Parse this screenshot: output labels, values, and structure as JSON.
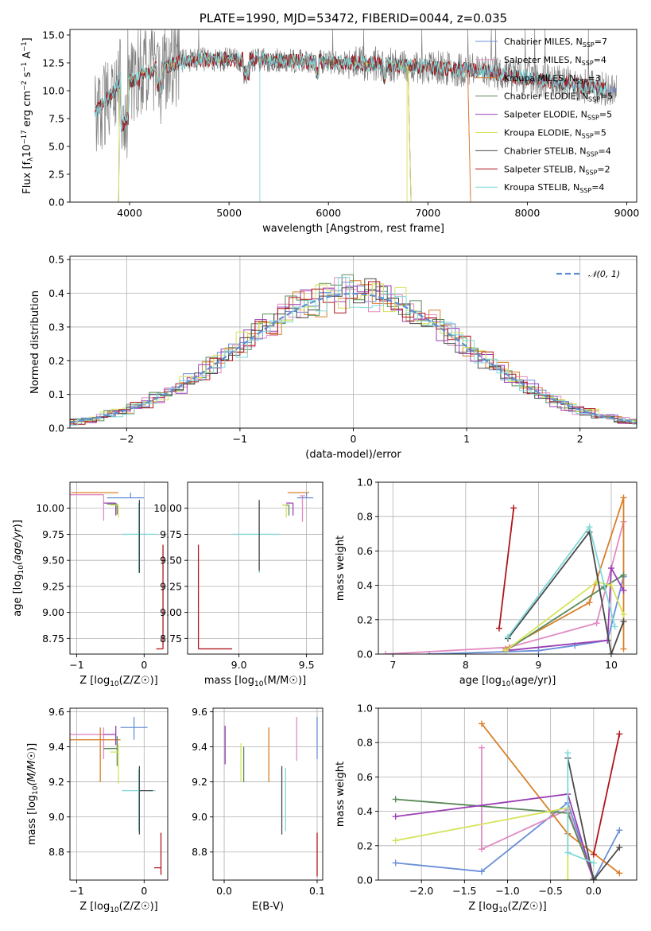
{
  "chart_data": [
    {
      "id": "spectrum",
      "type": "line",
      "title": "PLATE=1990, MJD=53472, FIBERID=0044, z=0.035",
      "xlabel": "wavelength [Angstrom, rest frame]",
      "ylabel": "Flux [f_λ10^-17 erg cm^-2 s^-1 A^-1]",
      "xlim": [
        3400,
        9100
      ],
      "ylim": [
        0,
        15.5
      ],
      "xticks": [
        4000,
        5000,
        6000,
        7000,
        8000,
        9000
      ],
      "yticks": [
        0.0,
        2.5,
        5.0,
        7.5,
        10.0,
        12.5,
        15.0
      ],
      "grid": false,
      "legend_position": "top-right",
      "data_series": {
        "name": "",
        "color": "#808080",
        "x_range": [
          3650,
          8900
        ]
      },
      "series": [
        {
          "name": "Chabrier MILES, N_SSP=7",
          "label": "Chabrier MILES, N",
          "sub": "SSP",
          "suffix": "=7",
          "color": "#6a8fd8",
          "x_range": [
            3650,
            8900
          ]
        },
        {
          "name": "Salpeter MILES, N_SSP=4",
          "label": "Salpeter MILES, N",
          "sub": "SSP",
          "suffix": "=4",
          "color": "#e28bc3",
          "x_range": [
            3650,
            7400
          ]
        },
        {
          "name": "Kroupa MILES, N_SSP=3",
          "label": "Kroupa MILES, N",
          "sub": "SSP",
          "suffix": "=3",
          "color": "#d97f2a",
          "x_range": [
            3650,
            7400
          ]
        },
        {
          "name": "Chabrier ELODIE, N_SSP=5",
          "label": "Chabrier ELODIE, N",
          "sub": "SSP",
          "suffix": "=5",
          "color": "#5a8a5a",
          "x_range": [
            3900,
            6800
          ]
        },
        {
          "name": "Salpeter ELODIE, N_SSP=5",
          "label": "Salpeter ELODIE, N",
          "sub": "SSP",
          "suffix": "=5",
          "color": "#9b3fb5",
          "x_range": [
            3900,
            6800
          ]
        },
        {
          "name": "Kroupa ELODIE, N_SSP=5",
          "label": "Kroupa ELODIE, N",
          "sub": "SSP",
          "suffix": "=5",
          "color": "#d6e35a",
          "x_range": [
            3900,
            6800
          ]
        },
        {
          "name": "Chabrier STELIB, N_SSP=4",
          "label": "Chabrier STELIB, N",
          "sub": "SSP",
          "suffix": "=4",
          "color": "#4a4a4a",
          "x_range": [
            3650,
            8800
          ]
        },
        {
          "name": "Salpeter STELIB, N_SSP=2",
          "label": "Salpeter STELIB, N",
          "sub": "SSP",
          "suffix": "=2",
          "color": "#b0161b",
          "x_range": [
            3650,
            8800
          ]
        },
        {
          "name": "Kroupa STELIB, N_SSP=4",
          "label": "Kroupa STELIB, N",
          "sub": "SSP",
          "suffix": "=4",
          "color": "#7fd8d8",
          "x_range": [
            3650,
            8800
          ]
        }
      ]
    },
    {
      "id": "residuals",
      "type": "line",
      "xlabel": "(data-model)/error",
      "ylabel": "Normed distribution",
      "xlim": [
        -2.5,
        2.5
      ],
      "ylim": [
        0,
        0.51
      ],
      "xticks": [
        -2,
        -1,
        0,
        1,
        2
      ],
      "yticks": [
        0.0,
        0.1,
        0.2,
        0.3,
        0.4,
        0.5
      ],
      "grid": true,
      "legend_position": "top-right",
      "reference_curve": {
        "name": "N(0,1)",
        "label": "𝒩(0, 1)",
        "color": "#5b8fd1",
        "mean": 0,
        "sigma": 1
      },
      "histogram_bin_width": 0.1
    },
    {
      "id": "age_vs_Z",
      "type": "scatter",
      "xlabel_text": "Z [log",
      "xlabel_sub": "10",
      "xlabel_rest": "(Z/Z☉)]",
      "ylabel": "age [log10(age/yr)]",
      "xlim": [
        -1.1,
        0.35
      ],
      "ylim": [
        8.6,
        10.25
      ],
      "xticks": [
        -1,
        0
      ],
      "yticks": [
        8.75,
        9.0,
        9.25,
        9.5,
        9.75,
        10.0
      ],
      "grid": true,
      "points": [
        {
          "x": -0.68,
          "xerr": [
            0.4,
            0.3
          ],
          "y": 10.15,
          "yerr": [
            0.0,
            0.0
          ],
          "color": "#d97f2a"
        },
        {
          "x": -0.6,
          "xerr": [
            0.55,
            0.0
          ],
          "y": 10.13,
          "yerr": [
            0.25,
            0.0
          ],
          "color": "#e28bc3"
        },
        {
          "x": -0.2,
          "xerr": [
            0.35,
            0.2
          ],
          "y": 10.1,
          "yerr": [
            0.0,
            0.05
          ],
          "color": "#6a8fd8"
        },
        {
          "x": -0.42,
          "xerr": [
            0.18,
            0.0
          ],
          "y": 10.05,
          "yerr": [
            0.12,
            0.0
          ],
          "color": "#9b3fb5"
        },
        {
          "x": -0.4,
          "xerr": [
            0.15,
            0.0
          ],
          "y": 10.04,
          "yerr": [
            0.1,
            0.0
          ],
          "color": "#5a8a5a"
        },
        {
          "x": -0.38,
          "xerr": [
            0.12,
            0.0
          ],
          "y": 10.03,
          "yerr": [
            0.12,
            0.0
          ],
          "color": "#d6e35a"
        },
        {
          "x": -0.08,
          "xerr": [
            0.25,
            0.25
          ],
          "y": 9.75,
          "yerr": [
            0.37,
            0.3
          ],
          "color": "#7fd8d8"
        },
        {
          "x": -0.07,
          "xerr": [
            0.0,
            0.0
          ],
          "y": 9.75,
          "yerr": [
            0.37,
            0.33
          ],
          "color": "#4a4a4a"
        },
        {
          "x": 0.28,
          "xerr": [
            0.1,
            0.0
          ],
          "y": 8.65,
          "yerr": [
            0.0,
            1.0
          ],
          "color": "#b0161b"
        }
      ]
    },
    {
      "id": "age_vs_mass",
      "type": "scatter",
      "xlabel_text": "mass [log",
      "xlabel_sub": "10",
      "xlabel_rest": "(M/M☉)]",
      "xlim": [
        8.62,
        9.62
      ],
      "ylim": [
        8.6,
        10.25
      ],
      "xticks": [
        9.0,
        9.5
      ],
      "yticks": [
        8.75,
        9.0,
        9.25,
        9.5,
        9.75,
        10.0
      ],
      "grid": true,
      "points": [
        {
          "x": 9.44,
          "xerr": [
            0.08,
            0.08
          ],
          "y": 10.15,
          "yerr": [
            0.0,
            0.0
          ],
          "color": "#d97f2a"
        },
        {
          "x": 9.47,
          "xerr": [
            0.02,
            0.02
          ],
          "y": 10.12,
          "yerr": [
            0.25,
            0.0
          ],
          "color": "#e28bc3"
        },
        {
          "x": 9.5,
          "xerr": [
            0.07,
            0.05
          ],
          "y": 10.1,
          "yerr": [
            0.0,
            0.05
          ],
          "color": "#6a8fd8"
        },
        {
          "x": 9.4,
          "xerr": [
            0.05,
            0.0
          ],
          "y": 10.05,
          "yerr": [
            0.12,
            0.0
          ],
          "color": "#9b3fb5"
        },
        {
          "x": 9.37,
          "xerr": [
            0.05,
            0.0
          ],
          "y": 10.03,
          "yerr": [
            0.1,
            0.0
          ],
          "color": "#5a8a5a"
        },
        {
          "x": 9.35,
          "xerr": [
            0.03,
            0.0
          ],
          "y": 10.03,
          "yerr": [
            0.12,
            0.0
          ],
          "color": "#d6e35a"
        },
        {
          "x": 9.15,
          "xerr": [
            0.2,
            0.15
          ],
          "y": 9.75,
          "yerr": [
            0.37,
            0.3
          ],
          "color": "#7fd8d8"
        },
        {
          "x": 9.15,
          "xerr": [
            0.0,
            0.0
          ],
          "y": 9.75,
          "yerr": [
            0.35,
            0.33
          ],
          "color": "#4a4a4a"
        },
        {
          "x": 8.7,
          "xerr": [
            0.0,
            0.25
          ],
          "y": 8.65,
          "yerr": [
            0.0,
            1.0
          ],
          "color": "#b0161b"
        }
      ]
    },
    {
      "id": "weight_vs_age",
      "type": "line",
      "xlabel_text": "age  [log",
      "xlabel_sub": "10",
      "xlabel_rest": "(age/yr)]",
      "ylabel": "mass weight",
      "xlim": [
        6.8,
        10.35
      ],
      "ylim": [
        0,
        1.0
      ],
      "xticks": [
        7,
        8,
        9,
        10
      ],
      "yticks": [
        0.0,
        0.2,
        0.4,
        0.6,
        0.8,
        1.0
      ],
      "grid": true,
      "series": [
        {
          "color": "#6a8fd8",
          "x": [
            7.5,
            9.0,
            9.5,
            9.95,
            10.17
          ],
          "y": [
            0.0,
            0.02,
            0.05,
            0.08,
            0.45
          ]
        },
        {
          "color": "#e28bc3",
          "x": [
            6.9,
            8.6,
            9.8,
            10.17
          ],
          "y": [
            0.0,
            0.04,
            0.18,
            0.77
          ]
        },
        {
          "color": "#d97f2a",
          "x": [
            8.55,
            9.7,
            10.17,
            10.17
          ],
          "y": [
            0.03,
            0.3,
            0.91,
            0.03
          ]
        },
        {
          "color": "#5a8a5a",
          "x": [
            8.55,
            9.9,
            10.17
          ],
          "y": [
            0.02,
            0.39,
            0.46
          ]
        },
        {
          "color": "#9b3fb5",
          "x": [
            8.55,
            9.95,
            10.0,
            10.17
          ],
          "y": [
            0.02,
            0.08,
            0.5,
            0.37
          ]
        },
        {
          "color": "#d6e35a",
          "x": [
            8.55,
            9.8,
            10.0,
            10.17
          ],
          "y": [
            0.02,
            0.42,
            0.4,
            0.23
          ]
        },
        {
          "color": "#4a4a4a",
          "x": [
            8.58,
            9.7,
            10.0,
            10.17
          ],
          "y": [
            0.09,
            0.71,
            0.0,
            0.19
          ]
        },
        {
          "color": "#b0161b",
          "x": [
            8.46,
            8.66
          ],
          "y": [
            0.15,
            0.85
          ]
        },
        {
          "color": "#7fd8d8",
          "x": [
            8.58,
            9.7,
            10.05
          ],
          "y": [
            0.1,
            0.74,
            0.16
          ]
        }
      ]
    },
    {
      "id": "mass_vs_Z",
      "type": "scatter",
      "xlabel_text": "Z [log",
      "xlabel_sub": "10",
      "xlabel_rest": "(Z/Z☉)]",
      "ylabel": "mass [log10(M/M☉)]",
      "xlim": [
        -1.1,
        0.35
      ],
      "ylim": [
        8.64,
        9.62
      ],
      "xticks": [
        -1,
        0
      ],
      "yticks": [
        8.8,
        9.0,
        9.2,
        9.4,
        9.6
      ],
      "grid": true,
      "points": [
        {
          "x": -0.6,
          "xerr": [
            0.55,
            0.0
          ],
          "y": 9.47,
          "yerr": [
            0.14,
            0.04
          ],
          "color": "#e28bc3"
        },
        {
          "x": -0.65,
          "xerr": [
            0.45,
            0.3
          ],
          "y": 9.44,
          "yerr": [
            0.24,
            0.07
          ],
          "color": "#d97f2a"
        },
        {
          "x": -0.15,
          "xerr": [
            0.2,
            0.2
          ],
          "y": 9.51,
          "yerr": [
            0.07,
            0.06
          ],
          "color": "#6a8fd8"
        },
        {
          "x": -0.42,
          "xerr": [
            0.18,
            0.0
          ],
          "y": 9.47,
          "yerr": [
            0.06,
            0.05
          ],
          "color": "#9b3fb5"
        },
        {
          "x": -0.4,
          "xerr": [
            0.2,
            0.0
          ],
          "y": 9.39,
          "yerr": [
            0.1,
            0.07
          ],
          "color": "#5a8a5a"
        },
        {
          "x": -0.38,
          "xerr": [
            0.12,
            0.0
          ],
          "y": 9.37,
          "yerr": [
            0.18,
            0.05
          ],
          "color": "#d6e35a"
        },
        {
          "x": -0.08,
          "xerr": [
            0.25,
            0.25
          ],
          "y": 9.15,
          "yerr": [
            0.23,
            0.12
          ],
          "color": "#7fd8d8"
        },
        {
          "x": -0.07,
          "xerr": [
            0.0,
            0.2
          ],
          "y": 9.15,
          "yerr": [
            0.25,
            0.14
          ],
          "color": "#4a4a4a"
        },
        {
          "x": 0.25,
          "xerr": [
            0.1,
            0.0
          ],
          "y": 8.71,
          "yerr": [
            0.04,
            0.2
          ],
          "color": "#b0161b"
        }
      ]
    },
    {
      "id": "mass_vs_ebv",
      "type": "scatter",
      "xlabel": "E(B-V)",
      "xlim": [
        -0.012,
        0.106
      ],
      "ylim": [
        8.64,
        9.62
      ],
      "xticks": [
        0.0,
        0.1
      ],
      "yticks": [
        8.8,
        9.0,
        9.2,
        9.4,
        9.6
      ],
      "grid": true,
      "points": [
        {
          "x": 0.001,
          "y": 9.4,
          "yerr": [
            0.1,
            0.12
          ],
          "color": "#9b3fb5"
        },
        {
          "x": 0.018,
          "y": 9.3,
          "yerr": [
            0.1,
            0.12
          ],
          "color": "#d6e35a"
        },
        {
          "x": 0.021,
          "y": 9.3,
          "yerr": [
            0.1,
            0.1
          ],
          "color": "#5a8a5a"
        },
        {
          "x": 0.048,
          "y": 9.35,
          "yerr": [
            0.15,
            0.16
          ],
          "color": "#d97f2a"
        },
        {
          "x": 0.062,
          "y": 9.1,
          "yerr": [
            0.2,
            0.19
          ],
          "color": "#4a4a4a"
        },
        {
          "x": 0.066,
          "y": 9.1,
          "yerr": [
            0.18,
            0.18
          ],
          "color": "#7fd8d8"
        },
        {
          "x": 0.078,
          "y": 9.45,
          "yerr": [
            0.13,
            0.12
          ],
          "color": "#e28bc3"
        },
        {
          "x": 0.1,
          "y": 9.45,
          "yerr": [
            0.12,
            0.12
          ],
          "color": "#6a8fd8"
        },
        {
          "x": 0.1,
          "y": 8.78,
          "yerr": [
            0.12,
            0.13
          ],
          "color": "#b0161b"
        }
      ]
    },
    {
      "id": "weight_vs_Z",
      "type": "line",
      "xlabel_text": "Z [log",
      "xlabel_sub": "10",
      "xlabel_rest": "(Z/Z☉)]",
      "ylabel": "mass weight",
      "xlim": [
        -2.5,
        0.5
      ],
      "ylim": [
        0,
        1.0
      ],
      "xticks": [
        -2.0,
        -1.5,
        -1.0,
        -0.5,
        0.0
      ],
      "yticks": [
        0.0,
        0.2,
        0.4,
        0.6,
        0.8,
        1.0
      ],
      "grid": true,
      "series": [
        {
          "color": "#6a8fd8",
          "x": [
            -2.3,
            -1.3,
            -0.3,
            0.0,
            0.3
          ],
          "y": [
            0.1,
            0.05,
            0.45,
            0.0,
            0.29
          ]
        },
        {
          "color": "#e28bc3",
          "x": [
            -1.3,
            -1.3,
            -0.3,
            0.0
          ],
          "y": [
            0.77,
            0.18,
            0.41,
            0.0
          ]
        },
        {
          "color": "#d97f2a",
          "x": [
            -1.3,
            -0.3,
            0.3
          ],
          "y": [
            0.91,
            0.27,
            0.04
          ]
        },
        {
          "color": "#5a8a5a",
          "x": [
            -2.3,
            -0.3,
            0.0
          ],
          "y": [
            0.47,
            0.39,
            0.01
          ]
        },
        {
          "color": "#9b3fb5",
          "x": [
            -2.3,
            -0.3,
            0.0
          ],
          "y": [
            0.37,
            0.5,
            0.0
          ]
        },
        {
          "color": "#d6e35a",
          "x": [
            -2.3,
            -0.3,
            -0.3
          ],
          "y": [
            0.23,
            0.42,
            0.0
          ]
        },
        {
          "color": "#4a4a4a",
          "x": [
            -0.3,
            0.0,
            0.3
          ],
          "y": [
            0.71,
            0.0,
            0.19
          ]
        },
        {
          "color": "#b0161b",
          "x": [
            0.0,
            0.3
          ],
          "y": [
            0.15,
            0.85
          ]
        },
        {
          "color": "#7fd8d8",
          "x": [
            -0.3,
            -0.3,
            0.0
          ],
          "y": [
            0.74,
            0.16,
            0.1
          ]
        }
      ]
    }
  ]
}
